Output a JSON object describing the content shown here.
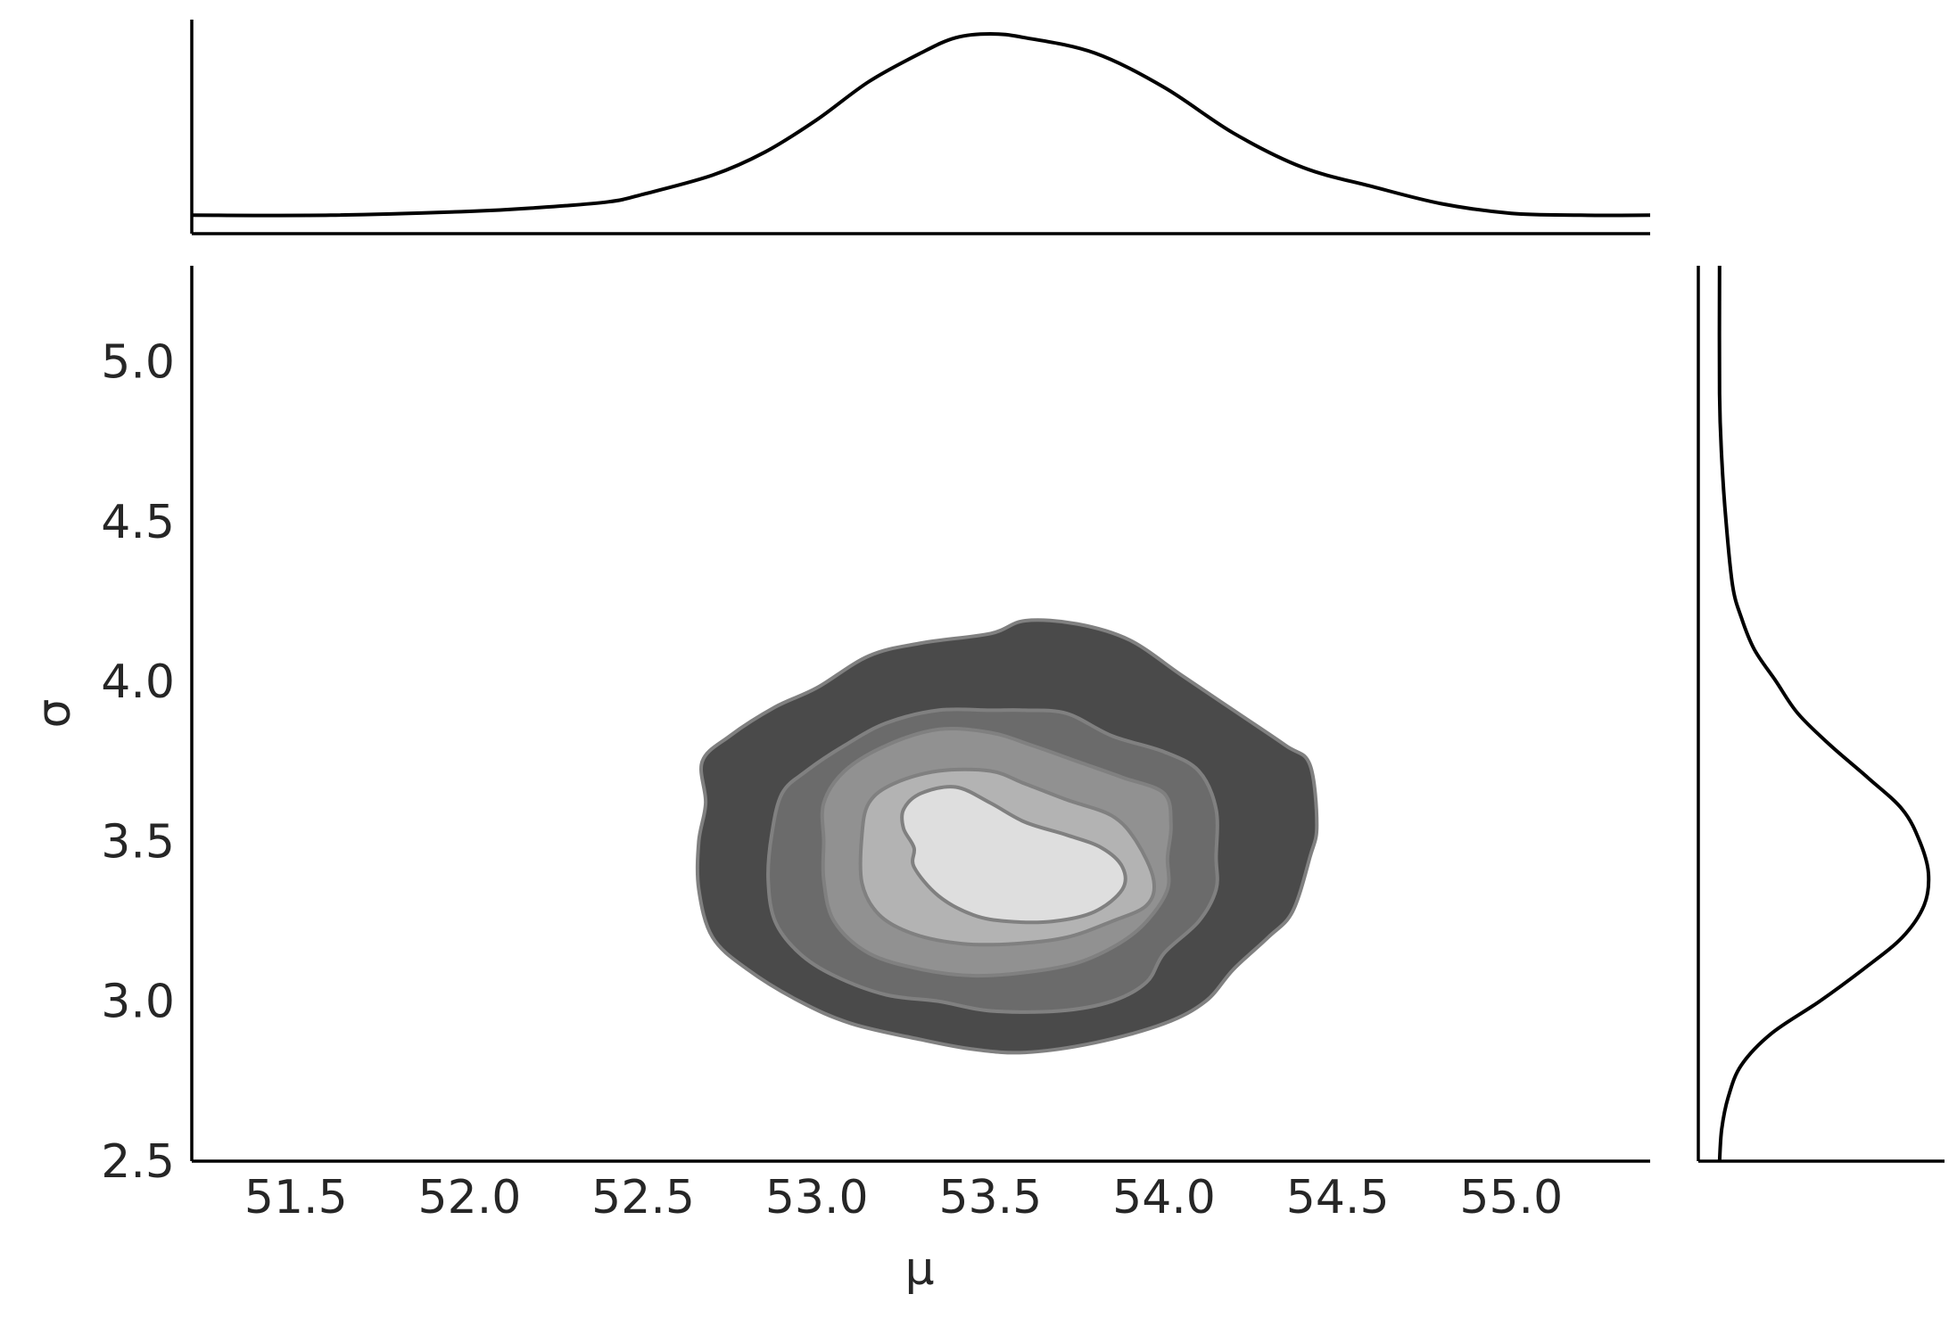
{
  "chart_data": {
    "type": "joint-kde",
    "xlabel": "μ",
    "ylabel": "σ",
    "xlim": [
      51.2,
      55.4
    ],
    "ylim": [
      2.5,
      5.3
    ],
    "x_ticks": [
      51.5,
      52.0,
      52.5,
      53.0,
      53.5,
      54.0,
      54.5,
      55.0
    ],
    "x_tick_labels": [
      "51.5",
      "52.0",
      "52.5",
      "53.0",
      "53.5",
      "54.0",
      "54.5",
      "55.0"
    ],
    "y_ticks": [
      2.5,
      3.0,
      3.5,
      4.0,
      4.5,
      5.0
    ],
    "y_tick_labels": [
      "2.5",
      "3.0",
      "3.5",
      "4.0",
      "4.5",
      "5.0"
    ],
    "grid": false,
    "contour_edge_color": "#808080",
    "line_color": "#000000",
    "contours": [
      {
        "level": 1,
        "fill": "#4a4a4a",
        "points": [
          [
            52.67,
            3.75
          ],
          [
            52.75,
            3.83
          ],
          [
            52.88,
            3.92
          ],
          [
            53.0,
            3.98
          ],
          [
            53.15,
            4.08
          ],
          [
            53.3,
            4.12
          ],
          [
            53.5,
            4.15
          ],
          [
            53.6,
            4.19
          ],
          [
            53.75,
            4.18
          ],
          [
            53.9,
            4.13
          ],
          [
            54.05,
            4.02
          ],
          [
            54.2,
            3.91
          ],
          [
            54.35,
            3.8
          ],
          [
            54.42,
            3.74
          ],
          [
            54.44,
            3.55
          ],
          [
            54.42,
            3.45
          ],
          [
            54.37,
            3.28
          ],
          [
            54.3,
            3.2
          ],
          [
            54.2,
            3.1
          ],
          [
            54.12,
            3.0
          ],
          [
            54.0,
            2.93
          ],
          [
            53.8,
            2.87
          ],
          [
            53.6,
            2.84
          ],
          [
            53.45,
            2.85
          ],
          [
            53.3,
            2.88
          ],
          [
            53.1,
            2.93
          ],
          [
            52.95,
            3.0
          ],
          [
            52.8,
            3.1
          ],
          [
            52.7,
            3.2
          ],
          [
            52.66,
            3.35
          ],
          [
            52.66,
            3.5
          ],
          [
            52.68,
            3.62
          ]
        ]
      },
      {
        "level": 2,
        "fill": "#6b6b6b",
        "points": [
          [
            52.87,
            3.52
          ],
          [
            52.9,
            3.65
          ],
          [
            52.97,
            3.72
          ],
          [
            53.08,
            3.8
          ],
          [
            53.2,
            3.87
          ],
          [
            53.35,
            3.91
          ],
          [
            53.5,
            3.91
          ],
          [
            53.6,
            3.91
          ],
          [
            53.72,
            3.9
          ],
          [
            53.85,
            3.83
          ],
          [
            54.0,
            3.78
          ],
          [
            54.1,
            3.72
          ],
          [
            54.15,
            3.6
          ],
          [
            54.15,
            3.45
          ],
          [
            54.15,
            3.35
          ],
          [
            54.1,
            3.25
          ],
          [
            54.0,
            3.15
          ],
          [
            53.95,
            3.06
          ],
          [
            53.85,
            3.0
          ],
          [
            53.7,
            2.97
          ],
          [
            53.5,
            2.97
          ],
          [
            53.35,
            3.0
          ],
          [
            53.2,
            3.02
          ],
          [
            53.05,
            3.08
          ],
          [
            52.95,
            3.15
          ],
          [
            52.88,
            3.25
          ],
          [
            52.86,
            3.38
          ]
        ]
      },
      {
        "level": 3,
        "fill": "#919191",
        "points": [
          [
            53.02,
            3.5
          ],
          [
            53.02,
            3.62
          ],
          [
            53.08,
            3.72
          ],
          [
            53.2,
            3.8
          ],
          [
            53.35,
            3.85
          ],
          [
            53.5,
            3.84
          ],
          [
            53.62,
            3.8
          ],
          [
            53.75,
            3.75
          ],
          [
            53.88,
            3.7
          ],
          [
            54.0,
            3.65
          ],
          [
            54.02,
            3.55
          ],
          [
            54.01,
            3.45
          ],
          [
            54.01,
            3.35
          ],
          [
            53.95,
            3.25
          ],
          [
            53.87,
            3.18
          ],
          [
            53.75,
            3.12
          ],
          [
            53.6,
            3.09
          ],
          [
            53.45,
            3.08
          ],
          [
            53.3,
            3.1
          ],
          [
            53.15,
            3.15
          ],
          [
            53.05,
            3.25
          ],
          [
            53.02,
            3.38
          ]
        ]
      },
      {
        "level": 4,
        "fill": "#b3b3b3",
        "points": [
          [
            53.13,
            3.52
          ],
          [
            53.15,
            3.62
          ],
          [
            53.22,
            3.68
          ],
          [
            53.35,
            3.72
          ],
          [
            53.5,
            3.72
          ],
          [
            53.6,
            3.68
          ],
          [
            53.72,
            3.63
          ],
          [
            53.85,
            3.58
          ],
          [
            53.92,
            3.5
          ],
          [
            53.97,
            3.38
          ],
          [
            53.95,
            3.3
          ],
          [
            53.85,
            3.25
          ],
          [
            53.72,
            3.2
          ],
          [
            53.57,
            3.18
          ],
          [
            53.42,
            3.18
          ],
          [
            53.28,
            3.21
          ],
          [
            53.18,
            3.27
          ],
          [
            53.13,
            3.37
          ]
        ]
      },
      {
        "level": 5,
        "fill": "#dedede",
        "points": [
          [
            53.25,
            3.6
          ],
          [
            53.3,
            3.65
          ],
          [
            53.4,
            3.67
          ],
          [
            53.5,
            3.62
          ],
          [
            53.6,
            3.56
          ],
          [
            53.72,
            3.52
          ],
          [
            53.82,
            3.48
          ],
          [
            53.88,
            3.42
          ],
          [
            53.88,
            3.35
          ],
          [
            53.8,
            3.28
          ],
          [
            53.68,
            3.25
          ],
          [
            53.55,
            3.25
          ],
          [
            53.45,
            3.27
          ],
          [
            53.35,
            3.33
          ],
          [
            53.28,
            3.42
          ],
          [
            53.28,
            3.48
          ],
          [
            53.25,
            3.54
          ]
        ]
      }
    ],
    "marginal_x": {
      "x": [
        51.2,
        51.6,
        52.0,
        52.2,
        52.4,
        52.5,
        52.7,
        52.85,
        53.0,
        53.15,
        53.3,
        53.4,
        53.5,
        53.6,
        53.8,
        54.0,
        54.2,
        54.4,
        54.6,
        54.8,
        55.0,
        55.2,
        55.4
      ],
      "density": [
        0.05,
        0.05,
        0.07,
        0.09,
        0.12,
        0.16,
        0.26,
        0.38,
        0.55,
        0.75,
        0.9,
        0.98,
        1.0,
        0.98,
        0.9,
        0.72,
        0.48,
        0.3,
        0.2,
        0.11,
        0.06,
        0.05,
        0.05
      ]
    },
    "marginal_y": {
      "y": [
        2.5,
        2.6,
        2.7,
        2.8,
        2.9,
        3.0,
        3.1,
        3.2,
        3.3,
        3.4,
        3.5,
        3.6,
        3.7,
        3.8,
        3.9,
        4.0,
        4.1,
        4.2,
        4.3,
        4.5,
        4.7,
        4.9,
        5.3
      ],
      "density": [
        0.04,
        0.05,
        0.08,
        0.14,
        0.28,
        0.5,
        0.7,
        0.88,
        0.98,
        1.0,
        0.96,
        0.88,
        0.72,
        0.55,
        0.4,
        0.3,
        0.2,
        0.14,
        0.1,
        0.07,
        0.05,
        0.04,
        0.04
      ]
    }
  }
}
